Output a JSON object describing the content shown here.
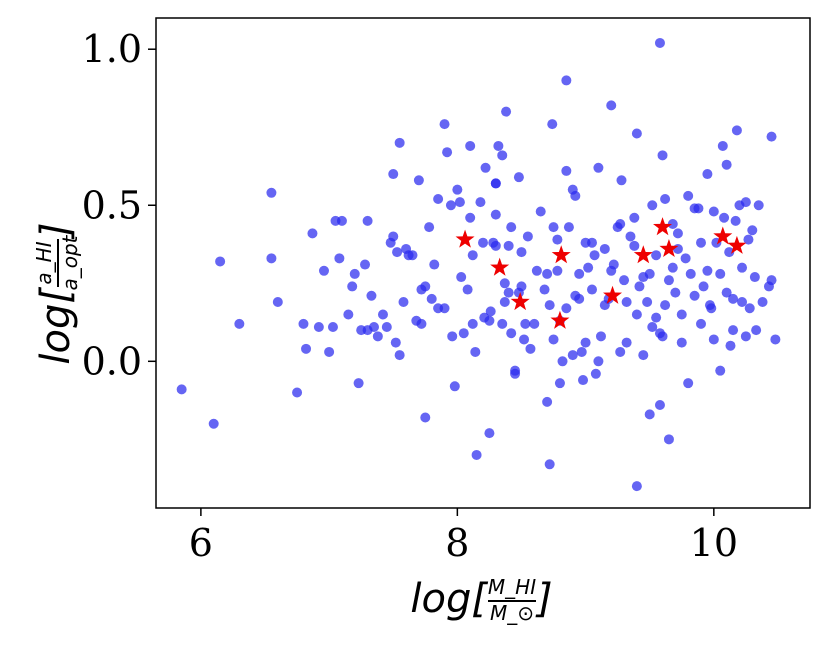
{
  "chart_data": {
    "type": "scatter",
    "title": "",
    "xlabel": {
      "prefix": "log[",
      "numerator": "M_HI",
      "denominator": "M_⊙",
      "suffix": "]"
    },
    "ylabel": {
      "prefix": "log[",
      "numerator": "a_HI",
      "denominator": "a_opt",
      "suffix": "]"
    },
    "xlim": [
      5.65,
      10.75
    ],
    "ylim": [
      -0.47,
      1.1
    ],
    "xticks": [
      6,
      8,
      10
    ],
    "xtick_labels": [
      "6",
      "8",
      "10"
    ],
    "yticks": [
      0.0,
      0.5,
      1.0
    ],
    "ytick_labels": [
      "0.0",
      "0.5",
      "1.0"
    ],
    "grid": false,
    "colors": {
      "series1": "#2a2aee",
      "series2": "#ee0000"
    },
    "series": [
      {
        "marker": "circle",
        "color": "#2a2aee",
        "points": [
          [
            5.85,
            -0.09
          ],
          [
            6.1,
            -0.2
          ],
          [
            6.15,
            0.32
          ],
          [
            6.3,
            0.12
          ],
          [
            6.55,
            0.54
          ],
          [
            6.55,
            0.33
          ],
          [
            6.6,
            0.19
          ],
          [
            6.75,
            -0.1
          ],
          [
            6.8,
            0.12
          ],
          [
            6.82,
            0.04
          ],
          [
            6.87,
            0.41
          ],
          [
            6.92,
            0.11
          ],
          [
            6.96,
            0.29
          ],
          [
            7.0,
            0.03
          ],
          [
            7.03,
            0.11
          ],
          [
            7.05,
            0.45
          ],
          [
            7.08,
            0.33
          ],
          [
            7.1,
            0.45
          ],
          [
            7.15,
            0.15
          ],
          [
            7.18,
            0.24
          ],
          [
            7.2,
            0.28
          ],
          [
            7.23,
            -0.07
          ],
          [
            7.25,
            0.1
          ],
          [
            7.28,
            0.31
          ],
          [
            7.3,
            0.1
          ],
          [
            7.3,
            0.45
          ],
          [
            7.33,
            0.21
          ],
          [
            7.35,
            0.11
          ],
          [
            7.38,
            0.08
          ],
          [
            7.42,
            0.15
          ],
          [
            7.45,
            0.11
          ],
          [
            7.48,
            0.38
          ],
          [
            7.5,
            0.4
          ],
          [
            7.5,
            0.6
          ],
          [
            7.52,
            0.06
          ],
          [
            7.53,
            0.35
          ],
          [
            7.55,
            0.7
          ],
          [
            7.55,
            0.02
          ],
          [
            7.58,
            0.19
          ],
          [
            7.6,
            0.36
          ],
          [
            7.62,
            0.34
          ],
          [
            7.65,
            0.34
          ],
          [
            7.68,
            0.13
          ],
          [
            7.7,
            0.58
          ],
          [
            7.72,
            0.23
          ],
          [
            7.72,
            0.12
          ],
          [
            7.75,
            -0.18
          ],
          [
            7.75,
            0.24
          ],
          [
            7.78,
            0.43
          ],
          [
            7.8,
            0.2
          ],
          [
            7.82,
            0.31
          ],
          [
            7.85,
            0.52
          ],
          [
            7.85,
            0.17
          ],
          [
            7.9,
            0.76
          ],
          [
            7.9,
            0.17
          ],
          [
            7.92,
            0.67
          ],
          [
            7.95,
            0.5
          ],
          [
            7.96,
            0.08
          ],
          [
            7.98,
            -0.08
          ],
          [
            8.0,
            0.55
          ],
          [
            8.02,
            0.51
          ],
          [
            8.03,
            0.27
          ],
          [
            8.05,
            0.09
          ],
          [
            8.08,
            0.23
          ],
          [
            8.1,
            0.69
          ],
          [
            8.1,
            0.46
          ],
          [
            8.12,
            0.34
          ],
          [
            8.12,
            0.12
          ],
          [
            8.14,
            0.03
          ],
          [
            8.15,
            -0.3
          ],
          [
            8.18,
            0.51
          ],
          [
            8.2,
            0.38
          ],
          [
            8.21,
            0.14
          ],
          [
            8.22,
            0.62
          ],
          [
            8.25,
            -0.23
          ],
          [
            8.25,
            0.13
          ],
          [
            8.26,
            0.16
          ],
          [
            8.28,
            0.38
          ],
          [
            8.3,
            0.57
          ],
          [
            8.3,
            0.57
          ],
          [
            8.3,
            0.37
          ],
          [
            8.3,
            0.47
          ],
          [
            8.32,
            0.69
          ],
          [
            8.35,
            0.66
          ],
          [
            8.35,
            0.12
          ],
          [
            8.37,
            0.25
          ],
          [
            8.37,
            0.19
          ],
          [
            8.38,
            0.8
          ],
          [
            8.4,
            0.37
          ],
          [
            8.4,
            0.22
          ],
          [
            8.42,
            0.43
          ],
          [
            8.42,
            0.09
          ],
          [
            8.45,
            -0.03
          ],
          [
            8.45,
            -0.04
          ],
          [
            8.48,
            0.59
          ],
          [
            8.5,
            0.35
          ],
          [
            8.5,
            0.24
          ],
          [
            8.52,
            0.07
          ],
          [
            8.53,
            0.12
          ],
          [
            8.55,
            0.4
          ],
          [
            8.57,
            0.04
          ],
          [
            8.6,
            0.12
          ],
          [
            8.62,
            0.29
          ],
          [
            8.65,
            0.48
          ],
          [
            8.68,
            0.23
          ],
          [
            8.7,
            -0.13
          ],
          [
            8.7,
            0.28
          ],
          [
            8.72,
            0.18
          ],
          [
            8.72,
            -0.33
          ],
          [
            8.74,
            0.76
          ],
          [
            8.75,
            0.43
          ],
          [
            8.75,
            0.07
          ],
          [
            8.78,
            0.39
          ],
          [
            8.78,
            0.29
          ],
          [
            8.8,
            0.13
          ],
          [
            8.8,
            -0.07
          ],
          [
            8.82,
            0.0
          ],
          [
            8.85,
            0.9
          ],
          [
            8.85,
            0.61
          ],
          [
            8.85,
            0.17
          ],
          [
            8.87,
            0.43
          ],
          [
            8.9,
            0.02
          ],
          [
            8.9,
            0.55
          ],
          [
            8.92,
            0.21
          ],
          [
            8.95,
            0.2
          ],
          [
            8.97,
            0.03
          ],
          [
            8.98,
            -0.06
          ],
          [
            9.0,
            0.38
          ],
          [
            9.0,
            0.06
          ],
          [
            9.02,
            0.3
          ],
          [
            9.05,
            0.38
          ],
          [
            9.05,
            0.23
          ],
          [
            9.07,
            0.34
          ],
          [
            9.08,
            -0.04
          ],
          [
            9.1,
            0.62
          ],
          [
            9.1,
            0.0
          ],
          [
            9.12,
            0.08
          ],
          [
            9.15,
            0.18
          ],
          [
            9.15,
            0.36
          ],
          [
            9.18,
            0.2
          ],
          [
            9.2,
            0.82
          ],
          [
            9.2,
            0.29
          ],
          [
            9.22,
            0.31
          ],
          [
            9.25,
            0.43
          ],
          [
            9.27,
            0.03
          ],
          [
            9.28,
            0.58
          ],
          [
            9.3,
            0.26
          ],
          [
            9.32,
            0.19
          ],
          [
            9.32,
            0.06
          ],
          [
            9.35,
            0.4
          ],
          [
            9.38,
            0.46
          ],
          [
            9.38,
            0.37
          ],
          [
            9.4,
            0.73
          ],
          [
            9.4,
            0.15
          ],
          [
            9.4,
            -0.4
          ],
          [
            9.42,
            0.24
          ],
          [
            9.45,
            0.27
          ],
          [
            9.45,
            0.02
          ],
          [
            9.48,
            0.19
          ],
          [
            9.5,
            0.28
          ],
          [
            9.5,
            -0.17
          ],
          [
            9.52,
            0.5
          ],
          [
            9.52,
            0.11
          ],
          [
            9.55,
            0.34
          ],
          [
            9.55,
            0.14
          ],
          [
            9.58,
            -0.14
          ],
          [
            9.58,
            1.02
          ],
          [
            9.6,
            0.66
          ],
          [
            9.6,
            0.08
          ],
          [
            9.62,
            0.52
          ],
          [
            9.62,
            0.18
          ],
          [
            9.65,
            0.26
          ],
          [
            9.65,
            -0.25
          ],
          [
            9.68,
            0.3
          ],
          [
            9.68,
            0.44
          ],
          [
            9.7,
            0.22
          ],
          [
            9.72,
            0.41
          ],
          [
            9.72,
            0.36
          ],
          [
            9.75,
            0.15
          ],
          [
            9.75,
            0.06
          ],
          [
            9.78,
            0.33
          ],
          [
            9.8,
            0.53
          ],
          [
            9.8,
            -0.07
          ],
          [
            9.82,
            0.28
          ],
          [
            9.85,
            0.49
          ],
          [
            9.85,
            0.21
          ],
          [
            9.88,
            0.49
          ],
          [
            9.9,
            0.38
          ],
          [
            9.9,
            0.12
          ],
          [
            9.92,
            0.24
          ],
          [
            9.95,
            0.6
          ],
          [
            9.95,
            0.29
          ],
          [
            9.97,
            0.18
          ],
          [
            10.0,
            0.48
          ],
          [
            10.0,
            0.07
          ],
          [
            10.02,
            0.38
          ],
          [
            10.05,
            0.28
          ],
          [
            10.05,
            -0.03
          ],
          [
            10.07,
            0.69
          ],
          [
            10.08,
            0.46
          ],
          [
            10.1,
            0.22
          ],
          [
            10.1,
            0.63
          ],
          [
            10.12,
            0.35
          ],
          [
            10.15,
            0.2
          ],
          [
            10.15,
            0.1
          ],
          [
            10.17,
            0.45
          ],
          [
            10.18,
            0.74
          ],
          [
            10.2,
            0.5
          ],
          [
            10.22,
            0.3
          ],
          [
            10.22,
            0.19
          ],
          [
            10.25,
            0.51
          ],
          [
            10.25,
            0.08
          ],
          [
            10.27,
            0.39
          ],
          [
            10.28,
            0.17
          ],
          [
            10.3,
            0.42
          ],
          [
            10.32,
            0.27
          ],
          [
            10.33,
            0.1
          ],
          [
            10.35,
            0.5
          ],
          [
            10.45,
            0.72
          ],
          [
            10.45,
            0.26
          ],
          [
            10.48,
            0.07
          ],
          [
            10.43,
            0.24
          ],
          [
            10.38,
            0.19
          ],
          [
            10.13,
            0.05
          ],
          [
            9.58,
            0.09
          ],
          [
            9.27,
            0.44
          ],
          [
            8.95,
            0.28
          ],
          [
            8.48,
            0.22
          ],
          [
            8.92,
            0.53
          ],
          [
            9.98,
            0.17
          ]
        ]
      },
      {
        "marker": "star",
        "color": "#ee0000",
        "points": [
          [
            8.06,
            0.39
          ],
          [
            8.33,
            0.3
          ],
          [
            8.49,
            0.19
          ],
          [
            8.8,
            0.13
          ],
          [
            8.81,
            0.34
          ],
          [
            9.21,
            0.21
          ],
          [
            9.45,
            0.34
          ],
          [
            9.6,
            0.43
          ],
          [
            9.65,
            0.36
          ],
          [
            10.07,
            0.4
          ],
          [
            10.18,
            0.37
          ]
        ]
      }
    ]
  }
}
